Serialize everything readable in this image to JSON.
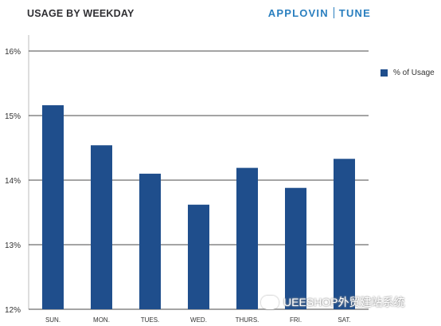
{
  "header": {
    "title": "USAGE BY WEEKDAY",
    "brand_primary": "APPLOVIN",
    "brand_secondary": "TUNE"
  },
  "watermark": {
    "text": "UEESHOP外贸建站系统"
  },
  "colors": {
    "bar": "#1f4e8c",
    "grid": "#4a4a4a",
    "brand": "#2a7fbf",
    "text": "#333333"
  },
  "chart_data": {
    "type": "bar",
    "categories": [
      "SUN.",
      "MON.",
      "TUES.",
      "WED.",
      "THURS.",
      "FRI.",
      "SAT."
    ],
    "series": [
      {
        "name": "% of Usage",
        "values": [
          15.16,
          14.54,
          14.1,
          13.62,
          14.19,
          13.88,
          14.33
        ]
      }
    ],
    "ylim": [
      12,
      16
    ],
    "yticks": [
      "12%",
      "13%",
      "14%",
      "15%",
      "16%"
    ],
    "ytick_values": [
      12,
      13,
      14,
      15,
      16
    ],
    "grid": true,
    "legend_position": "right",
    "title": "USAGE BY WEEKDAY"
  }
}
